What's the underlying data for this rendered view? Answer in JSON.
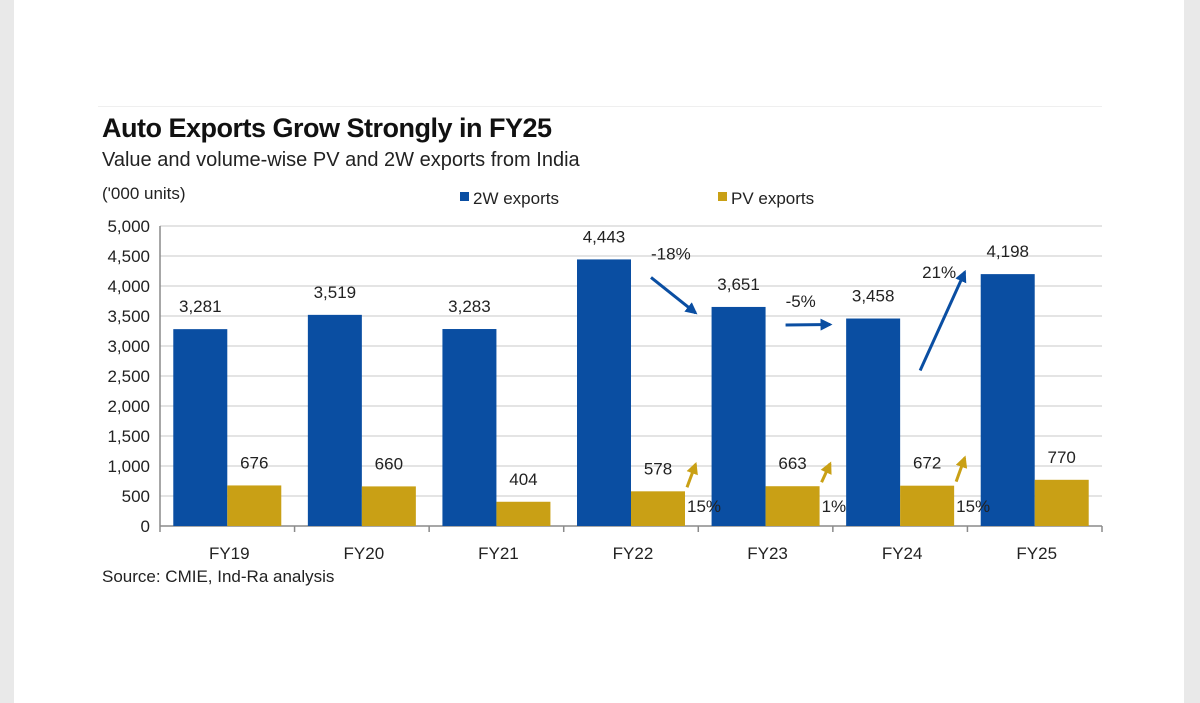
{
  "chart_data": {
    "type": "bar",
    "title": "Auto Exports Grow Strongly in FY25",
    "subtitle": "Value and volume-wise PV and 2W exports from India",
    "ylabel": "('000 units)",
    "source": "Source: CMIE, Ind-Ra analysis",
    "categories": [
      "FY19",
      "FY20",
      "FY21",
      "FY22",
      "FY23",
      "FY24",
      "FY25"
    ],
    "series": [
      {
        "name": "2W exports",
        "color": "#0a4ea2",
        "values": [
          3281,
          3519,
          3283,
          4443,
          3651,
          3458,
          4198
        ],
        "labels": [
          "3,281",
          "3,519",
          "3,283",
          "4,443",
          "3,651",
          "3,458",
          "4,198"
        ]
      },
      {
        "name": "PV exports",
        "color": "#c9a015",
        "values": [
          676,
          660,
          404,
          578,
          663,
          672,
          770
        ],
        "labels": [
          "676",
          "660",
          "404",
          "578",
          "663",
          "672",
          "770"
        ]
      }
    ],
    "ylim": [
      0,
      5000
    ],
    "yticks": [
      0,
      500,
      1000,
      1500,
      2000,
      2500,
      3000,
      3500,
      4000,
      4500,
      5000
    ],
    "ytick_labels": [
      "0",
      "500",
      "1,000",
      "1,500",
      "2,000",
      "2,500",
      "3,000",
      "3,500",
      "4,000",
      "4,500",
      "5,000"
    ],
    "grid": true,
    "legend_position": "top",
    "annotations": [
      {
        "series": "2W exports",
        "from": "FY22",
        "to": "FY23",
        "text": "-18%",
        "color": "#0a4ea2"
      },
      {
        "series": "2W exports",
        "from": "FY23",
        "to": "FY24",
        "text": "-5%",
        "color": "#0a4ea2"
      },
      {
        "series": "2W exports",
        "from": "FY24",
        "to": "FY25",
        "text": "21%",
        "color": "#0a4ea2"
      },
      {
        "series": "PV exports",
        "from": "FY22",
        "to": "FY23",
        "text": "15%",
        "color": "#c9a015"
      },
      {
        "series": "PV exports",
        "from": "FY23",
        "to": "FY24",
        "text": "1%",
        "color": "#c9a015"
      },
      {
        "series": "PV exports",
        "from": "FY24",
        "to": "FY25",
        "text": "15%",
        "color": "#c9a015"
      }
    ]
  }
}
